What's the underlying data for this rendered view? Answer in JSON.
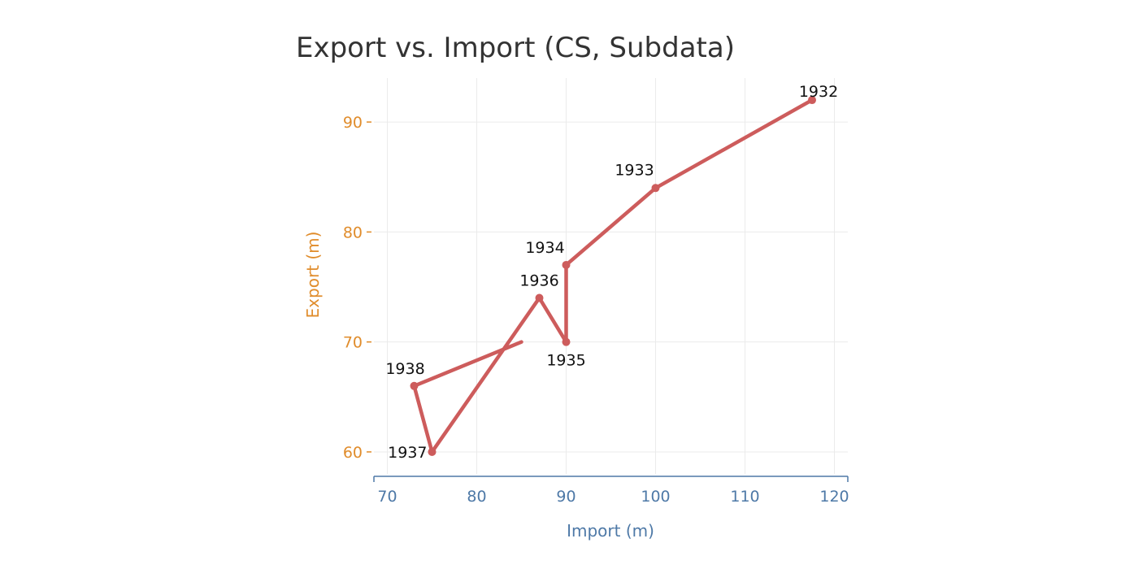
{
  "chart_data": {
    "type": "line",
    "title": "Export vs. Import (CS, Subdata)",
    "xlabel": "Import (m)",
    "ylabel": "Export (m)",
    "xlim": [
      68.5,
      121.5
    ],
    "ylim": [
      58,
      94
    ],
    "x_ticks": [
      70,
      80,
      90,
      100,
      110,
      120
    ],
    "y_ticks": [
      60,
      70,
      80,
      90
    ],
    "grid": true,
    "colors": {
      "line": "#cd5c5c",
      "x_axis": "#4e79a7",
      "y_axis": "#e08c2b"
    },
    "series": [
      {
        "points": [
          {
            "x": 117.5,
            "y": 92,
            "label": "1932"
          },
          {
            "x": 100,
            "y": 84,
            "label": "1933"
          },
          {
            "x": 90,
            "y": 77,
            "label": "1934"
          },
          {
            "x": 90,
            "y": 70,
            "label": "1935"
          },
          {
            "x": 87,
            "y": 74,
            "label": "1936"
          },
          {
            "x": 75,
            "y": 60,
            "label": "1937"
          },
          {
            "x": 73,
            "y": 66,
            "label": "1938"
          },
          {
            "x": 85,
            "y": 70,
            "label": ""
          }
        ]
      }
    ]
  }
}
